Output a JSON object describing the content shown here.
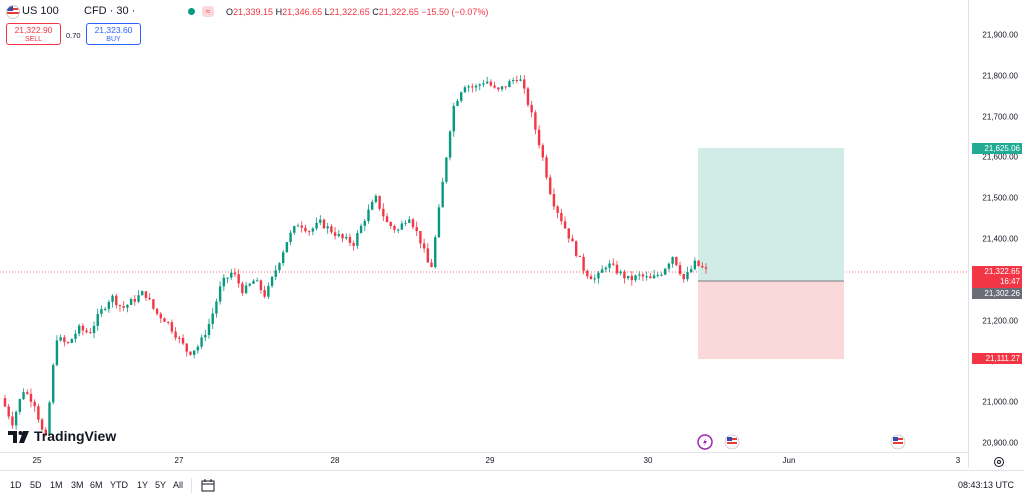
{
  "header": {
    "symbol": "US 100",
    "meta": "CFD · 30 ·",
    "ohlc": {
      "o_label": "O",
      "o": "21,339.15",
      "h_label": "H",
      "h": "21,346.65",
      "l_label": "L",
      "l": "21,322.65",
      "c_label": "C",
      "c": "21,322.65",
      "change": "−15.50 (−0.07%)"
    },
    "sell_price": "21,322.90",
    "sell_label": "SELL",
    "spread": "0.70",
    "buy_price": "21,323.60",
    "buy_label": "BUY"
  },
  "price_axis": {
    "ticks": [
      "21,900.00",
      "21,800.00",
      "21,700.00",
      "21,600.00",
      "21,500.00",
      "21,400.00",
      "21,300.00",
      "21,200.00",
      "21,100.00",
      "21,000.00",
      "20,900.00"
    ],
    "take_profit_tag": "21,625.06",
    "current_price_tag": "21,322.65",
    "countdown": "16:47",
    "entry_tag": "21,302.26",
    "stop_loss_tag": "21,111.27"
  },
  "time_axis": {
    "labels": [
      "25",
      "27",
      "28",
      "29",
      "30",
      "Jun",
      "3"
    ]
  },
  "bottom_bar": {
    "ranges": [
      "1D",
      "5D",
      "1M",
      "3M",
      "6M",
      "YTD",
      "1Y",
      "5Y",
      "All"
    ],
    "clock": "08:43:13 UTC"
  },
  "watermark": "TradingView",
  "colors": {
    "up": "#089981",
    "down": "#f23645",
    "tp_zone": "#d1ece6",
    "sl_zone": "#fbd9db",
    "tp_tag": "#22ab94",
    "sl_tag": "#f23645",
    "entry_tag": "#6a6d78"
  },
  "chart_data": {
    "type": "candlestick",
    "instrument": "US 100",
    "interval": "30",
    "ylim": [
      20880,
      21960
    ],
    "x_ticks": [
      "25",
      "27",
      "28",
      "29",
      "30",
      "Jun",
      "3"
    ],
    "position": {
      "entry": 21302.26,
      "take_profit": 21625.06,
      "stop_loss": 21111.27
    },
    "close_path": [
      [
        0,
        21010
      ],
      [
        1,
        20950
      ],
      [
        2,
        21030
      ],
      [
        3,
        21000
      ],
      [
        4,
        20900
      ],
      [
        5,
        21160
      ],
      [
        6,
        21140
      ],
      [
        7,
        21180
      ],
      [
        8,
        21170
      ],
      [
        9,
        21220
      ],
      [
        10,
        21260
      ],
      [
        11,
        21230
      ],
      [
        12,
        21250
      ],
      [
        13,
        21270
      ],
      [
        14,
        21220
      ],
      [
        15,
        21200
      ],
      [
        16,
        21160
      ],
      [
        17,
        21120
      ],
      [
        18,
        21140
      ],
      [
        19,
        21200
      ],
      [
        20,
        21290
      ],
      [
        21,
        21320
      ],
      [
        22,
        21270
      ],
      [
        23,
        21300
      ],
      [
        24,
        21260
      ],
      [
        25,
        21330
      ],
      [
        26,
        21400
      ],
      [
        27,
        21440
      ],
      [
        28,
        21420
      ],
      [
        29,
        21440
      ],
      [
        30,
        21420
      ],
      [
        31,
        21400
      ],
      [
        32,
        21390
      ],
      [
        33,
        21450
      ],
      [
        34,
        21500
      ],
      [
        35,
        21440
      ],
      [
        36,
        21420
      ],
      [
        37,
        21460
      ],
      [
        38,
        21400
      ],
      [
        39,
        21320
      ],
      [
        40,
        21520
      ],
      [
        41,
        21720
      ],
      [
        42,
        21780
      ],
      [
        43,
        21770
      ],
      [
        44,
        21790
      ],
      [
        45,
        21760
      ],
      [
        46,
        21780
      ],
      [
        47,
        21800
      ],
      [
        48,
        21720
      ],
      [
        49,
        21620
      ],
      [
        50,
        21500
      ],
      [
        51,
        21440
      ],
      [
        52,
        21380
      ],
      [
        53,
        21320
      ],
      [
        54,
        21300
      ],
      [
        55,
        21340
      ],
      [
        56,
        21320
      ],
      [
        57,
        21300
      ],
      [
        58,
        21310
      ],
      [
        59,
        21300
      ],
      [
        60,
        21320
      ],
      [
        61,
        21360
      ],
      [
        62,
        21300
      ],
      [
        63,
        21340
      ],
      [
        64,
        21322
      ]
    ]
  }
}
